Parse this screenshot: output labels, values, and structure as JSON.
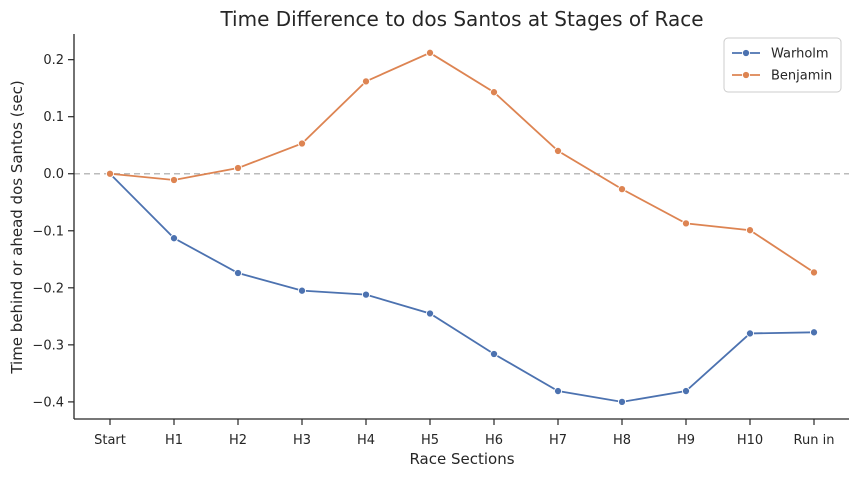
{
  "chart_data": {
    "type": "line",
    "title": "Time Difference to dos Santos at Stages of Race",
    "xlabel": "Race Sections",
    "ylabel": "Time behind or ahead dos Santos (sec)",
    "categories": [
      "Start",
      "H1",
      "H2",
      "H3",
      "H4",
      "H5",
      "H6",
      "H7",
      "H8",
      "H9",
      "H10",
      "Run in"
    ],
    "ylim": [
      -0.43,
      0.245
    ],
    "yticks": [
      -0.4,
      -0.3,
      -0.2,
      -0.1,
      0.0,
      0.1,
      0.2
    ],
    "ytick_labels": [
      "−0.4",
      "−0.3",
      "−0.2",
      "−0.1",
      "0.0",
      "0.1",
      "0.2"
    ],
    "reference_line": {
      "y": 0.0,
      "style": "dashed",
      "color": "#bbbbbb"
    },
    "legend_position": "top-right",
    "grid": false,
    "series": [
      {
        "name": "Warholm",
        "color": "#4c72b0",
        "values": [
          0.0,
          -0.113,
          -0.174,
          -0.205,
          -0.212,
          -0.245,
          -0.316,
          -0.381,
          -0.4,
          -0.381,
          -0.28,
          -0.278
        ]
      },
      {
        "name": "Benjamin",
        "color": "#dd8452",
        "values": [
          0.0,
          -0.011,
          0.01,
          0.053,
          0.162,
          0.212,
          0.143,
          0.04,
          -0.027,
          -0.087,
          -0.099,
          -0.173
        ]
      }
    ]
  }
}
